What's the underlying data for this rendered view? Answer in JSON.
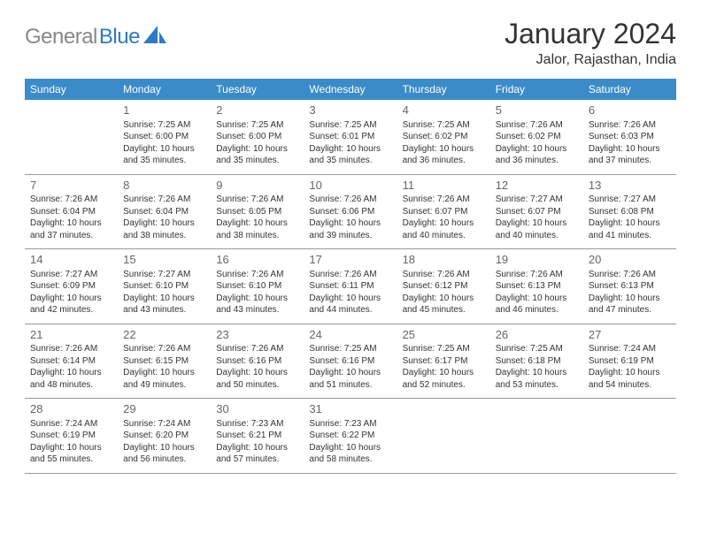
{
  "logo": {
    "part1": "General",
    "part2": "Blue"
  },
  "title": "January 2024",
  "subtitle": "Jalor, Rajasthan, India",
  "colors": {
    "header_bg": "#3b8bc9",
    "header_text": "#ffffff",
    "border": "#999999"
  },
  "weekdays": [
    "Sunday",
    "Monday",
    "Tuesday",
    "Wednesday",
    "Thursday",
    "Friday",
    "Saturday"
  ],
  "weeks": [
    [
      null,
      {
        "n": "1",
        "sr": "7:25 AM",
        "ss": "6:00 PM",
        "d1": "Daylight: 10 hours",
        "d2": "and 35 minutes."
      },
      {
        "n": "2",
        "sr": "7:25 AM",
        "ss": "6:00 PM",
        "d1": "Daylight: 10 hours",
        "d2": "and 35 minutes."
      },
      {
        "n": "3",
        "sr": "7:25 AM",
        "ss": "6:01 PM",
        "d1": "Daylight: 10 hours",
        "d2": "and 35 minutes."
      },
      {
        "n": "4",
        "sr": "7:25 AM",
        "ss": "6:02 PM",
        "d1": "Daylight: 10 hours",
        "d2": "and 36 minutes."
      },
      {
        "n": "5",
        "sr": "7:26 AM",
        "ss": "6:02 PM",
        "d1": "Daylight: 10 hours",
        "d2": "and 36 minutes."
      },
      {
        "n": "6",
        "sr": "7:26 AM",
        "ss": "6:03 PM",
        "d1": "Daylight: 10 hours",
        "d2": "and 37 minutes."
      }
    ],
    [
      {
        "n": "7",
        "sr": "7:26 AM",
        "ss": "6:04 PM",
        "d1": "Daylight: 10 hours",
        "d2": "and 37 minutes."
      },
      {
        "n": "8",
        "sr": "7:26 AM",
        "ss": "6:04 PM",
        "d1": "Daylight: 10 hours",
        "d2": "and 38 minutes."
      },
      {
        "n": "9",
        "sr": "7:26 AM",
        "ss": "6:05 PM",
        "d1": "Daylight: 10 hours",
        "d2": "and 38 minutes."
      },
      {
        "n": "10",
        "sr": "7:26 AM",
        "ss": "6:06 PM",
        "d1": "Daylight: 10 hours",
        "d2": "and 39 minutes."
      },
      {
        "n": "11",
        "sr": "7:26 AM",
        "ss": "6:07 PM",
        "d1": "Daylight: 10 hours",
        "d2": "and 40 minutes."
      },
      {
        "n": "12",
        "sr": "7:27 AM",
        "ss": "6:07 PM",
        "d1": "Daylight: 10 hours",
        "d2": "and 40 minutes."
      },
      {
        "n": "13",
        "sr": "7:27 AM",
        "ss": "6:08 PM",
        "d1": "Daylight: 10 hours",
        "d2": "and 41 minutes."
      }
    ],
    [
      {
        "n": "14",
        "sr": "7:27 AM",
        "ss": "6:09 PM",
        "d1": "Daylight: 10 hours",
        "d2": "and 42 minutes."
      },
      {
        "n": "15",
        "sr": "7:27 AM",
        "ss": "6:10 PM",
        "d1": "Daylight: 10 hours",
        "d2": "and 43 minutes."
      },
      {
        "n": "16",
        "sr": "7:26 AM",
        "ss": "6:10 PM",
        "d1": "Daylight: 10 hours",
        "d2": "and 43 minutes."
      },
      {
        "n": "17",
        "sr": "7:26 AM",
        "ss": "6:11 PM",
        "d1": "Daylight: 10 hours",
        "d2": "and 44 minutes."
      },
      {
        "n": "18",
        "sr": "7:26 AM",
        "ss": "6:12 PM",
        "d1": "Daylight: 10 hours",
        "d2": "and 45 minutes."
      },
      {
        "n": "19",
        "sr": "7:26 AM",
        "ss": "6:13 PM",
        "d1": "Daylight: 10 hours",
        "d2": "and 46 minutes."
      },
      {
        "n": "20",
        "sr": "7:26 AM",
        "ss": "6:13 PM",
        "d1": "Daylight: 10 hours",
        "d2": "and 47 minutes."
      }
    ],
    [
      {
        "n": "21",
        "sr": "7:26 AM",
        "ss": "6:14 PM",
        "d1": "Daylight: 10 hours",
        "d2": "and 48 minutes."
      },
      {
        "n": "22",
        "sr": "7:26 AM",
        "ss": "6:15 PM",
        "d1": "Daylight: 10 hours",
        "d2": "and 49 minutes."
      },
      {
        "n": "23",
        "sr": "7:26 AM",
        "ss": "6:16 PM",
        "d1": "Daylight: 10 hours",
        "d2": "and 50 minutes."
      },
      {
        "n": "24",
        "sr": "7:25 AM",
        "ss": "6:16 PM",
        "d1": "Daylight: 10 hours",
        "d2": "and 51 minutes."
      },
      {
        "n": "25",
        "sr": "7:25 AM",
        "ss": "6:17 PM",
        "d1": "Daylight: 10 hours",
        "d2": "and 52 minutes."
      },
      {
        "n": "26",
        "sr": "7:25 AM",
        "ss": "6:18 PM",
        "d1": "Daylight: 10 hours",
        "d2": "and 53 minutes."
      },
      {
        "n": "27",
        "sr": "7:24 AM",
        "ss": "6:19 PM",
        "d1": "Daylight: 10 hours",
        "d2": "and 54 minutes."
      }
    ],
    [
      {
        "n": "28",
        "sr": "7:24 AM",
        "ss": "6:19 PM",
        "d1": "Daylight: 10 hours",
        "d2": "and 55 minutes."
      },
      {
        "n": "29",
        "sr": "7:24 AM",
        "ss": "6:20 PM",
        "d1": "Daylight: 10 hours",
        "d2": "and 56 minutes."
      },
      {
        "n": "30",
        "sr": "7:23 AM",
        "ss": "6:21 PM",
        "d1": "Daylight: 10 hours",
        "d2": "and 57 minutes."
      },
      {
        "n": "31",
        "sr": "7:23 AM",
        "ss": "6:22 PM",
        "d1": "Daylight: 10 hours",
        "d2": "and 58 minutes."
      },
      null,
      null,
      null
    ]
  ]
}
